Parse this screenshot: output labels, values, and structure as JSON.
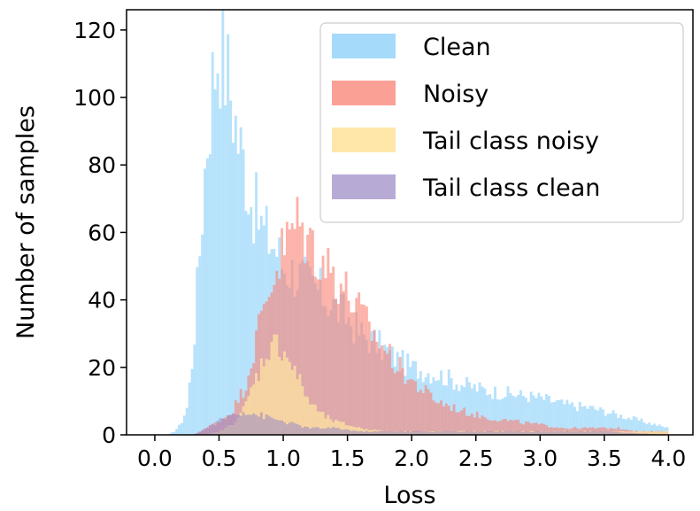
{
  "chart_data": {
    "type": "histogram",
    "title": "",
    "xlabel": "Loss",
    "ylabel": "Number of samples",
    "xlim": [
      -0.22,
      4.19
    ],
    "ylim": [
      0,
      126
    ],
    "xticks": [
      "0.0",
      "0.5",
      "1.0",
      "1.5",
      "2.0",
      "2.5",
      "3.0",
      "3.5",
      "4.0"
    ],
    "yticks": [
      "0",
      "20",
      "40",
      "60",
      "80",
      "100",
      "120"
    ],
    "grid": false,
    "legend_position": "top-right",
    "bin_width": 0.02,
    "series": [
      {
        "name": "Clean",
        "color": "#87CEFA",
        "alpha": 0.6,
        "x": [
          0.1,
          0.15,
          0.2,
          0.25,
          0.3,
          0.35,
          0.4,
          0.45,
          0.5,
          0.55,
          0.6,
          0.65,
          0.7,
          0.75,
          0.8,
          0.85,
          0.9,
          0.95,
          1.0,
          1.1,
          1.2,
          1.3,
          1.4,
          1.5,
          1.6,
          1.7,
          1.8,
          1.9,
          2.0,
          2.2,
          2.4,
          2.6,
          2.8,
          3.0,
          3.2,
          3.4,
          3.6,
          3.8,
          4.0
        ],
        "values": [
          0,
          1,
          3,
          8,
          25,
          55,
          85,
          105,
          118,
          110,
          100,
          88,
          80,
          70,
          65,
          60,
          58,
          55,
          50,
          48,
          45,
          42,
          38,
          35,
          30,
          28,
          25,
          22,
          20,
          18,
          15,
          13,
          12,
          11,
          9,
          8,
          6,
          4,
          2
        ]
      },
      {
        "name": "Noisy",
        "color": "#FA8072",
        "alpha": 0.6,
        "x": [
          0.3,
          0.4,
          0.5,
          0.6,
          0.7,
          0.8,
          0.9,
          1.0,
          1.1,
          1.2,
          1.3,
          1.4,
          1.5,
          1.6,
          1.7,
          1.8,
          1.9,
          2.0,
          2.2,
          2.4,
          2.6,
          2.8,
          3.0,
          3.2,
          3.4,
          3.6,
          3.8,
          4.0
        ],
        "values": [
          0,
          2,
          4,
          7,
          14,
          30,
          45,
          55,
          63,
          58,
          52,
          48,
          42,
          36,
          30,
          25,
          20,
          16,
          10,
          7,
          5,
          4,
          3,
          2,
          2,
          2,
          1,
          1
        ]
      },
      {
        "name": "Tail class noisy",
        "color": "#FFE4A0",
        "alpha": 0.75,
        "x": [
          0.4,
          0.5,
          0.6,
          0.7,
          0.8,
          0.9,
          1.0,
          1.1,
          1.2,
          1.3,
          1.4,
          1.5,
          1.6,
          1.8,
          2.0,
          2.5,
          3.0,
          3.5,
          4.0
        ],
        "values": [
          0,
          1,
          3,
          8,
          18,
          27,
          26,
          18,
          10,
          6,
          4,
          3,
          2,
          1,
          1,
          1,
          1,
          1,
          1
        ]
      },
      {
        "name": "Tail class clean",
        "color": "#9988C4",
        "alpha": 0.55,
        "x": [
          0.3,
          0.4,
          0.5,
          0.6,
          0.7,
          0.8,
          0.9,
          1.0,
          1.1,
          1.2,
          1.4,
          1.6,
          2.0,
          2.5,
          3.0,
          3.5,
          4.0
        ],
        "values": [
          0,
          2,
          4,
          6,
          7,
          6,
          5,
          4,
          3,
          2,
          2,
          1,
          1,
          1,
          1,
          1,
          0
        ]
      }
    ]
  }
}
